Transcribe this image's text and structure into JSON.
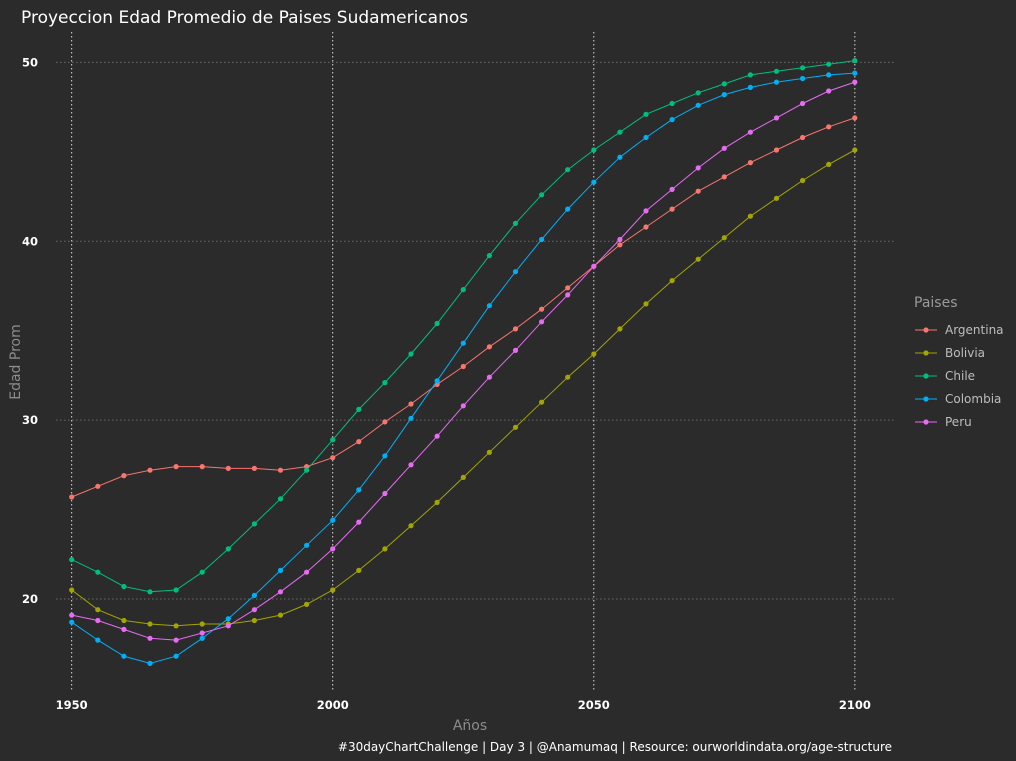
{
  "chart_data": {
    "type": "line",
    "title": "Proyeccion Edad Promedio de Paises Sudamericanos",
    "xlabel": "Años",
    "ylabel": "Edad Prom",
    "caption": "#30dayChartChallenge | Day 3 | @Anamumaq | Resource: ourworldindata.org/age-structure",
    "xlim": [
      1947,
      2107.5
    ],
    "ylim": [
      14.8,
      51.7
    ],
    "x_ticks": [
      "1950",
      "2000",
      "2050",
      "2100"
    ],
    "y_ticks": [
      "20",
      "30",
      "40",
      "50"
    ],
    "legend": {
      "title": "Paises",
      "position": "right"
    },
    "grid": true,
    "x": [
      1950,
      1955,
      1960,
      1965,
      1970,
      1975,
      1980,
      1985,
      1990,
      1995,
      2000,
      2005,
      2010,
      2015,
      2020,
      2025,
      2030,
      2035,
      2040,
      2045,
      2050,
      2055,
      2060,
      2065,
      2070,
      2075,
      2080,
      2085,
      2090,
      2095,
      2100
    ],
    "series": [
      {
        "name": "Argentina",
        "color": "#f8766d",
        "values": [
          25.7,
          26.3,
          26.9,
          27.2,
          27.4,
          27.4,
          27.3,
          27.3,
          27.2,
          27.4,
          27.9,
          28.8,
          29.9,
          30.9,
          32.0,
          33.0,
          34.1,
          35.1,
          36.2,
          37.4,
          38.6,
          39.8,
          40.8,
          41.8,
          42.8,
          43.6,
          44.4,
          45.1,
          45.8,
          46.4,
          46.9
        ]
      },
      {
        "name": "Bolivia",
        "color": "#a3a500",
        "values": [
          20.5,
          19.4,
          18.8,
          18.6,
          18.5,
          18.6,
          18.6,
          18.8,
          19.1,
          19.7,
          20.5,
          21.6,
          22.8,
          24.1,
          25.4,
          26.8,
          28.2,
          29.6,
          31.0,
          32.4,
          33.7,
          35.1,
          36.5,
          37.8,
          39.0,
          40.2,
          41.4,
          42.4,
          43.4,
          44.3,
          45.1
        ]
      },
      {
        "name": "Chile",
        "color": "#00bf7d",
        "values": [
          22.2,
          21.5,
          20.7,
          20.4,
          20.5,
          21.5,
          22.8,
          24.2,
          25.6,
          27.2,
          28.9,
          30.6,
          32.1,
          33.7,
          35.4,
          37.3,
          39.2,
          41.0,
          42.6,
          44.0,
          45.1,
          46.1,
          47.1,
          47.7,
          48.3,
          48.8,
          49.3,
          49.5,
          49.7,
          49.9,
          50.1
        ]
      },
      {
        "name": "Colombia",
        "color": "#00b0f6",
        "values": [
          18.7,
          17.7,
          16.8,
          16.4,
          16.8,
          17.8,
          18.9,
          20.2,
          21.6,
          23.0,
          24.4,
          26.1,
          28.0,
          30.1,
          32.2,
          34.3,
          36.4,
          38.3,
          40.1,
          41.8,
          43.3,
          44.7,
          45.8,
          46.8,
          47.6,
          48.2,
          48.6,
          48.9,
          49.1,
          49.3,
          49.4
        ]
      },
      {
        "name": "Peru",
        "color": "#e76bf3",
        "values": [
          19.1,
          18.8,
          18.3,
          17.8,
          17.7,
          18.1,
          18.5,
          19.4,
          20.4,
          21.5,
          22.8,
          24.3,
          25.9,
          27.5,
          29.1,
          30.8,
          32.4,
          33.9,
          35.5,
          37.0,
          38.6,
          40.1,
          41.7,
          42.9,
          44.1,
          45.2,
          46.1,
          46.9,
          47.7,
          48.4,
          48.9
        ]
      }
    ]
  }
}
